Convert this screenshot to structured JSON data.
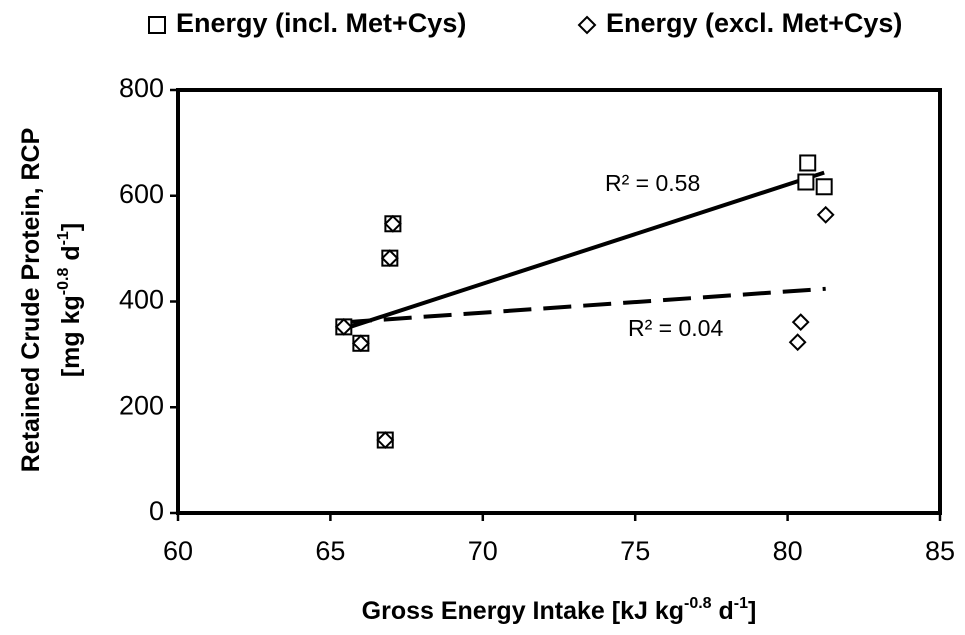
{
  "chart_data": {
    "type": "scatter",
    "x_label": [
      "Gross Energy Intake [kJ kg",
      "-0.8",
      " d",
      "-1",
      "]"
    ],
    "y_label": [
      [
        "Retained Crude Protein, RCP"
      ],
      [
        "[mg kg",
        "-0.8",
        " d",
        "-1",
        "]"
      ]
    ],
    "xlim": [
      60,
      85
    ],
    "xticks": [
      60,
      65,
      70,
      75,
      80,
      85
    ],
    "ylim": [
      0,
      800
    ],
    "yticks": [
      0,
      200,
      400,
      600,
      800
    ],
    "legend": "top",
    "series": [
      {
        "name": "Energy (incl. Met+Cys)",
        "marker": "square",
        "trendline": "solid",
        "color": "#000000",
        "x": [
          65.44,
          66.0,
          66.95,
          67.05,
          66.8,
          80.66,
          80.6,
          81.2
        ],
        "values": [
          352,
          321,
          482,
          547,
          138,
          662,
          626,
          617
        ]
      },
      {
        "name": "Energy (excl. Met+Cys)",
        "marker": "diamond",
        "trendline": "dashed",
        "color": "#000000",
        "x": [
          65.44,
          66.0,
          66.95,
          67.05,
          66.8,
          81.25,
          80.43,
          80.33
        ],
        "values": [
          352,
          321,
          482,
          547,
          138,
          564,
          361,
          323
        ]
      }
    ],
    "annotations": [
      "R² = 0.58",
      "R² = 0.04"
    ]
  }
}
